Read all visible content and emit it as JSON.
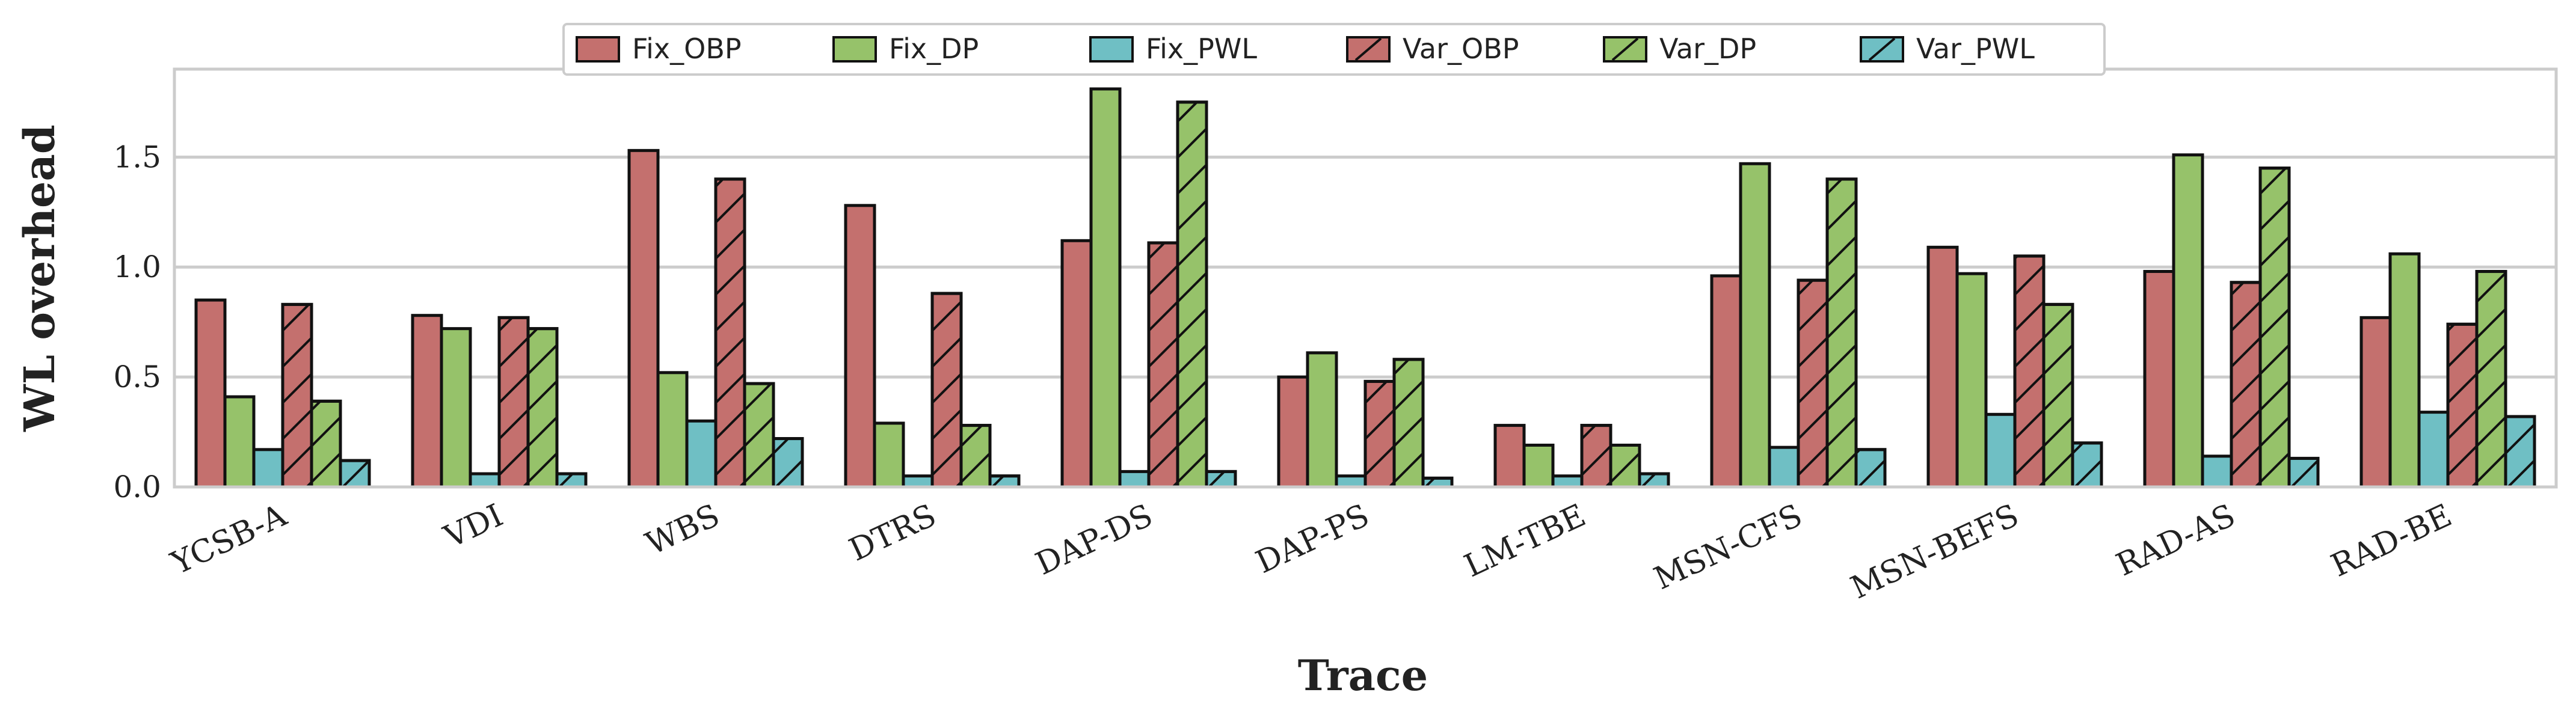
{
  "chart_data": {
    "type": "bar",
    "title": "",
    "xlabel": "Trace",
    "ylabel": "WL overhead",
    "ylim": [
      0,
      1.9
    ],
    "yticks": [
      "0.0",
      "0.5",
      "1.0",
      "1.5"
    ],
    "ytick_values": [
      0,
      0.5,
      1.0,
      1.5
    ],
    "grid": "horizontal",
    "legend_position": "top-center",
    "categories": [
      "YCSB-A",
      "VDI",
      "WBS",
      "DTRS",
      "DAP-DS",
      "DAP-PS",
      "LM-TBE",
      "MSN-CFS",
      "MSN-BEFS",
      "RAD-AS",
      "RAD-BE"
    ],
    "series": [
      {
        "name": "Fix_OBP",
        "color": "#c4706e",
        "hatch": false,
        "values": [
          0.85,
          0.78,
          1.53,
          1.28,
          1.12,
          0.5,
          0.28,
          0.96,
          1.09,
          0.98,
          0.77
        ]
      },
      {
        "name": "Fix_DP",
        "color": "#96c26a",
        "hatch": false,
        "values": [
          0.41,
          0.72,
          0.52,
          0.29,
          1.81,
          0.61,
          0.19,
          1.47,
          0.97,
          1.51,
          1.06
        ]
      },
      {
        "name": "Fix_PWL",
        "color": "#6fbfc4",
        "hatch": false,
        "values": [
          0.17,
          0.06,
          0.3,
          0.05,
          0.07,
          0.05,
          0.05,
          0.18,
          0.33,
          0.14,
          0.34
        ]
      },
      {
        "name": "Var_OBP",
        "color": "#c4706e",
        "hatch": true,
        "values": [
          0.83,
          0.77,
          1.4,
          0.88,
          1.11,
          0.48,
          0.28,
          0.94,
          1.05,
          0.93,
          0.74
        ]
      },
      {
        "name": "Var_DP",
        "color": "#96c26a",
        "hatch": true,
        "values": [
          0.39,
          0.72,
          0.47,
          0.28,
          1.75,
          0.58,
          0.19,
          1.4,
          0.83,
          1.45,
          0.98
        ]
      },
      {
        "name": "Var_PWL",
        "color": "#6fbfc4",
        "hatch": true,
        "values": [
          0.12,
          0.06,
          0.22,
          0.05,
          0.07,
          0.04,
          0.06,
          0.17,
          0.2,
          0.13,
          0.32
        ]
      }
    ]
  }
}
